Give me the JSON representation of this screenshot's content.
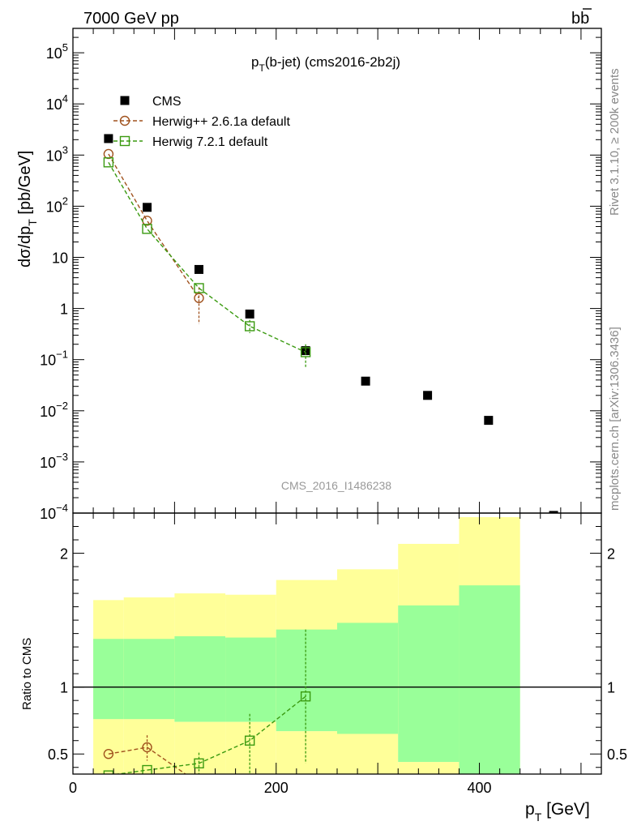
{
  "header": {
    "left": "7000 GeV pp",
    "right_main": "b",
    "right_bar": "b",
    "side_top": "Rivet 3.1.10, ≥ 200k events",
    "side_bottom": "mcplots.cern.ch [arXiv:1306.3436]",
    "watermark": "CMS_2016_I1486238"
  },
  "colors": {
    "cms": "#000000",
    "herwig_pp": "#a0521e",
    "herwig7": "#3a9a10",
    "band_inner": "#99ff99",
    "band_outer": "#ffff99"
  },
  "chart_data": [
    {
      "type": "scatter",
      "title_main": "p",
      "title_sub": "T",
      "title_rest": "(b-jet) (cms2016-2b2j)",
      "ylabel_main": "dσ/dp",
      "ylabel_sub": "T",
      "ylabel_rest": " [pb/GeV]",
      "yscale": "log",
      "ylim": [
        0.0001,
        300000
      ],
      "xlim": [
        0,
        520
      ],
      "ytick_labels": [
        {
          "v": 100000,
          "b": "10",
          "e": "5"
        },
        {
          "v": 10000,
          "b": "10",
          "e": "4"
        },
        {
          "v": 1000,
          "b": "10",
          "e": "3"
        },
        {
          "v": 100,
          "b": "10",
          "e": "2"
        },
        {
          "v": 10,
          "b": "10",
          "e": ""
        },
        {
          "v": 1,
          "b": "1",
          "e": ""
        },
        {
          "v": 0.1,
          "b": "10",
          "e": "−1"
        },
        {
          "v": 0.01,
          "b": "10",
          "e": "−2"
        },
        {
          "v": 0.001,
          "b": "10",
          "e": "−3"
        },
        {
          "v": 0.0001,
          "b": "10",
          "e": "−4"
        }
      ],
      "legend": [
        "CMS",
        "Herwig++ 2.6.1a default",
        "Herwig 7.2.1 default"
      ],
      "series": [
        {
          "name": "CMS",
          "marker": "square-filled",
          "x": [
            35,
            73,
            124,
            174,
            229,
            288,
            349,
            409,
            473
          ],
          "y": [
            2100,
            95,
            5.8,
            0.78,
            0.15,
            0.038,
            0.02,
            0.0065,
            9e-05
          ]
        },
        {
          "name": "Herwig++ 2.6.1a default",
          "marker": "circle-open",
          "x": [
            35,
            73,
            124
          ],
          "y": [
            1050,
            52,
            1.6
          ],
          "err_lo": [
            0,
            0,
            1.1
          ],
          "err_hi": [
            0,
            0,
            1.0
          ]
        },
        {
          "name": "Herwig 7.2.1 default",
          "marker": "square-open",
          "x": [
            35,
            73,
            124,
            174,
            229
          ],
          "y": [
            720,
            36,
            2.5,
            0.45,
            0.14
          ],
          "err_lo": [
            0,
            0,
            0,
            0.12,
            0.07
          ],
          "err_hi": [
            0,
            0,
            0,
            0.15,
            0.06
          ]
        }
      ]
    },
    {
      "type": "scatter",
      "ylabel": "Ratio to CMS",
      "xlabel_main": "p",
      "xlabel_sub": "T",
      "xlabel_rest": " [GeV]",
      "xlim": [
        0,
        520
      ],
      "ylim": [
        0.35,
        2.3
      ],
      "x_ticks": [
        0,
        200,
        400
      ],
      "y_ticks": [
        0.5,
        1,
        2
      ],
      "reference_line": 1,
      "bands": {
        "edges": [
          20,
          50,
          100,
          150,
          200,
          260,
          320,
          380,
          440
        ],
        "inner_lo": [
          0.0,
          0.0,
          0.0,
          0.0,
          0.0,
          0.0,
          0.0,
          0.0
        ],
        "inner_hi": [
          1.36,
          1.36,
          1.38,
          1.37,
          1.43,
          1.48,
          1.61,
          1.76
        ],
        "outer_lo": [
          0.76,
          0.76,
          0.74,
          0.74,
          0.67,
          0.65,
          0.44,
          0.35
        ],
        "outer_hi": [
          1.65,
          1.67,
          1.7,
          1.69,
          1.8,
          1.88,
          2.07,
          2.27
        ]
      },
      "series": [
        {
          "name": "Herwig++ 2.6.1a default",
          "marker": "circle-open",
          "x": [
            35,
            73,
            124
          ],
          "y": [
            0.5,
            0.55,
            0.28
          ],
          "err_lo": [
            0,
            0.1,
            0
          ],
          "err_hi": [
            0,
            0.09,
            0
          ]
        },
        {
          "name": "Herwig 7.2.1 default",
          "marker": "square-open",
          "x": [
            35,
            73,
            124,
            174,
            229
          ],
          "y": [
            0.34,
            0.38,
            0.43,
            0.6,
            0.93
          ],
          "err_lo": [
            0,
            0,
            0.1,
            0.25,
            0.5
          ],
          "err_hi": [
            0,
            0,
            0.08,
            0.2,
            0.5
          ]
        }
      ]
    }
  ]
}
